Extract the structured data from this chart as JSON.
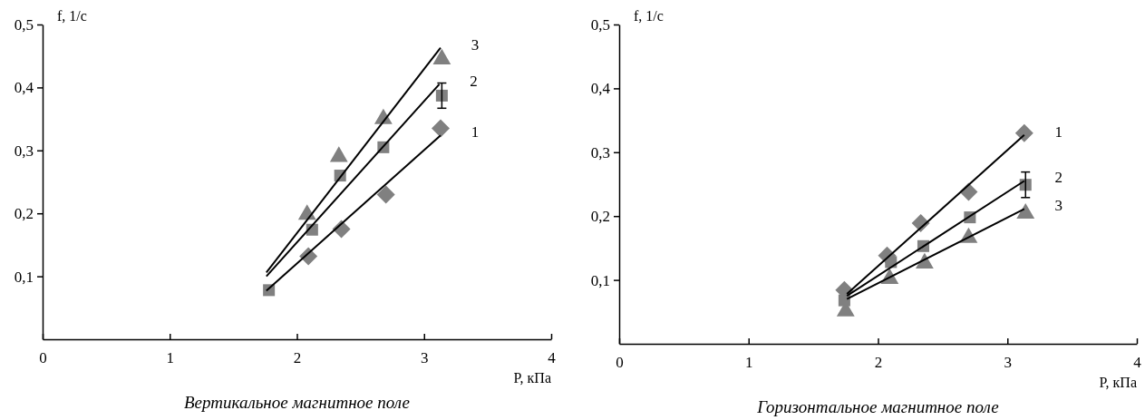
{
  "chart_data": [
    {
      "type": "scatter",
      "title": "Вертикальное магнитное поле",
      "xlabel": "P, кПа",
      "ylabel": "f, 1/с",
      "xlim": [
        0,
        4
      ],
      "xticks": [
        0,
        1,
        2,
        3,
        4
      ],
      "ylim": [
        0,
        0.5
      ],
      "yticks": [
        {
          "value": 0.1,
          "label": "0,1"
        },
        {
          "value": 0.2,
          "label": "0,2"
        },
        {
          "value": 0.3,
          "label": "0,3"
        },
        {
          "value": 0.4,
          "label": "0,4"
        },
        {
          "value": 0.5,
          "label": "0,5"
        }
      ],
      "grid": false,
      "series": [
        {
          "marker": "diamond",
          "color": "#808080",
          "x": [
            2.09,
            2.35,
            2.7,
            3.13
          ],
          "values": [
            0.132,
            0.175,
            0.23,
            0.335
          ]
        },
        {
          "marker": "square",
          "color": "#808080",
          "x": [
            1.78,
            2.12,
            2.34,
            2.68,
            3.14
          ],
          "values": [
            0.078,
            0.174,
            0.26,
            0.305,
            0.387
          ],
          "errors": [
            null,
            null,
            null,
            null,
            0.02
          ]
        },
        {
          "marker": "triangle",
          "color": "#808080",
          "x": [
            2.08,
            2.33,
            2.68,
            3.14
          ],
          "values": [
            0.198,
            0.29,
            0.35,
            0.445
          ]
        },
        {
          "type": "line",
          "name": "1",
          "marker": "none",
          "color": "#000000",
          "x": [
            1.76,
            3.13
          ],
          "values": [
            0.077,
            0.324
          ]
        },
        {
          "type": "line",
          "name": "2",
          "marker": "none",
          "color": "#000000",
          "x": [
            1.76,
            3.12
          ],
          "values": [
            0.1,
            0.405
          ]
        },
        {
          "type": "line",
          "name": "3",
          "marker": "none",
          "color": "#000000",
          "x": [
            1.76,
            3.13
          ],
          "values": [
            0.106,
            0.463
          ]
        }
      ]
    },
    {
      "type": "scatter",
      "title": "Горизонтальное магнитное поле",
      "xlabel": "P, кПа",
      "ylabel": "f, 1/с",
      "xlim": [
        0,
        4
      ],
      "xticks": [
        0,
        1,
        2,
        3,
        4
      ],
      "ylim": [
        0,
        0.5
      ],
      "yticks": [
        {
          "value": 0.1,
          "label": "0,1"
        },
        {
          "value": 0.2,
          "label": "0,2"
        },
        {
          "value": 0.3,
          "label": "0,3"
        },
        {
          "value": 0.4,
          "label": "0,4"
        },
        {
          "value": 0.5,
          "label": "0,5"
        }
      ],
      "grid": false,
      "series": [
        {
          "marker": "diamond",
          "color": "#808080",
          "x": [
            1.74,
            2.07,
            2.33,
            2.7,
            3.13
          ],
          "values": [
            0.084,
            0.138,
            0.189,
            0.238,
            0.33
          ]
        },
        {
          "marker": "square",
          "color": "#808080",
          "x": [
            1.74,
            2.1,
            2.35,
            2.71,
            3.14
          ],
          "values": [
            0.068,
            0.128,
            0.153,
            0.198,
            0.249
          ],
          "errors": [
            null,
            null,
            null,
            null,
            0.02
          ]
        },
        {
          "marker": "triangle",
          "color": "#808080",
          "x": [
            1.75,
            2.09,
            2.36,
            2.7,
            3.14
          ],
          "values": [
            0.051,
            0.102,
            0.126,
            0.166,
            0.204
          ]
        },
        {
          "type": "line",
          "name": "1",
          "marker": "none",
          "color": "#000000",
          "x": [
            1.76,
            3.13
          ],
          "values": [
            0.078,
            0.327
          ]
        },
        {
          "type": "line",
          "name": "2",
          "marker": "none",
          "color": "#000000",
          "x": [
            1.76,
            3.13
          ],
          "values": [
            0.075,
            0.255
          ]
        },
        {
          "type": "line",
          "name": "3",
          "marker": "none",
          "color": "#000000",
          "x": [
            1.76,
            3.13
          ],
          "values": [
            0.07,
            0.211
          ]
        }
      ]
    }
  ]
}
